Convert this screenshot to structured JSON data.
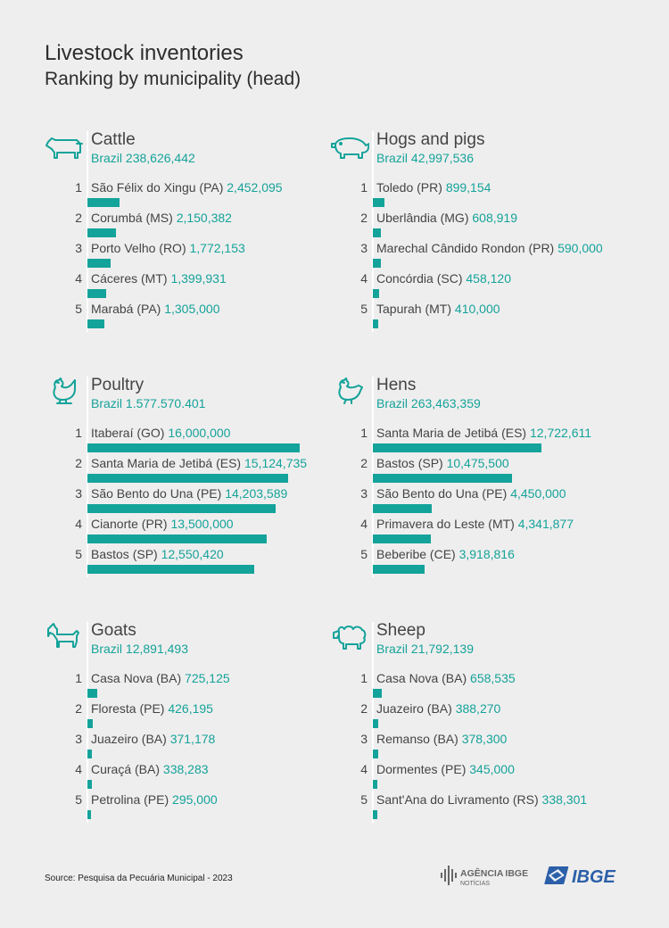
{
  "header": {
    "title": "Livestock inventories",
    "subtitle": "Ranking by municipality (head)"
  },
  "source": "Source: Pesquisa da Pecuária Municipal - 2023",
  "logos": {
    "agencia_a": "AGÊNCIA",
    "agencia_b": "IBGE",
    "noticias": "NOTÍCIAS",
    "ibge": "IBGE"
  },
  "colors": {
    "accent": "#14a39a",
    "text": "#444444",
    "background": "#efeeee",
    "logo_blue": "#2b5fa8"
  },
  "chart_data": [
    {
      "type": "bar",
      "title": "Cattle",
      "icon": "cattle-icon",
      "total_label": "Brazil",
      "total": "238,626,442",
      "ranks": [
        "1",
        "2",
        "3",
        "4",
        "5"
      ],
      "categories": [
        "São Félix do Xingu (PA)",
        "Corumbá (MS)",
        "Porto Velho (RO)",
        "Cáceres (MT)",
        "Marabá (PA)"
      ],
      "labels": [
        "2,452,095",
        "2,150,382",
        "1,772,153",
        "1,399,931",
        "1,305,000"
      ],
      "values": [
        2452095,
        2150382,
        1772153,
        1399931,
        1305000
      ]
    },
    {
      "type": "bar",
      "title": "Hogs and pigs",
      "icon": "pig-icon",
      "total_label": "Brazil",
      "total": "42,997,536",
      "ranks": [
        "1",
        "2",
        "3",
        "4",
        "5"
      ],
      "categories": [
        "Toledo (PR)",
        "Uberlândia (MG)",
        "Marechal Cândido Rondon (PR)",
        "Concórdia (SC)",
        "Tapurah (MT)"
      ],
      "labels": [
        "899,154",
        "608,919",
        "590,000",
        "458,120",
        "410,000"
      ],
      "values": [
        899154,
        608919,
        590000,
        458120,
        410000
      ]
    },
    {
      "type": "bar",
      "title": "Poultry",
      "icon": "poultry-icon",
      "total_label": "Brazil",
      "total": "1.577.570.401",
      "ranks": [
        "1",
        "2",
        "3",
        "4",
        "5"
      ],
      "categories": [
        "Itaberaí (GO)",
        "Santa Maria de Jetibá (ES)",
        "São Bento do Una (PE)",
        "Cianorte (PR)",
        "Bastos (SP)"
      ],
      "labels": [
        "16,000,000",
        "15,124,735",
        "14,203,589",
        "13,500,000",
        "12,550,420"
      ],
      "values": [
        16000000,
        15124735,
        14203589,
        13500000,
        12550420
      ]
    },
    {
      "type": "bar",
      "title": "Hens",
      "icon": "hen-icon",
      "total_label": "Brazil",
      "total": "263,463,359",
      "ranks": [
        "1",
        "2",
        "3",
        "4",
        "5"
      ],
      "categories": [
        "Santa Maria de Jetibá (ES)",
        "Bastos (SP)",
        "São Bento do Una (PE)",
        "Primavera do Leste (MT)",
        "Beberibe (CE)"
      ],
      "labels": [
        "12,722,611",
        "10,475,500",
        "4,450,000",
        "4,341,877",
        "3,918,816"
      ],
      "values": [
        12722611,
        10475500,
        4450000,
        4341877,
        3918816
      ]
    },
    {
      "type": "bar",
      "title": "Goats",
      "icon": "goat-icon",
      "total_label": "Brazil",
      "total": "12,891,493",
      "ranks": [
        "1",
        "2",
        "3",
        "4",
        "5"
      ],
      "categories": [
        "Casa Nova (BA)",
        "Floresta (PE)",
        "Juazeiro (BA)",
        "Curaçá (BA)",
        "Petrolina (PE)"
      ],
      "labels": [
        "725,125",
        "426,195",
        "371,178",
        "338,283",
        "295,000"
      ],
      "values": [
        725125,
        426195,
        371178,
        338283,
        295000
      ]
    },
    {
      "type": "bar",
      "title": "Sheep",
      "icon": "sheep-icon",
      "total_label": "Brazil",
      "total": "21,792,139",
      "ranks": [
        "1",
        "2",
        "3",
        "4",
        "5"
      ],
      "categories": [
        "Casa Nova (BA)",
        "Juazeiro (BA)",
        "Remanso (BA)",
        "Dormentes (PE)",
        "Sant'Ana do Livramento (RS) "
      ],
      "labels": [
        "658,535",
        "388,270",
        "378,300",
        "345,000",
        "338,301"
      ],
      "values": [
        658535,
        388270,
        378300,
        345000,
        338301
      ]
    }
  ]
}
